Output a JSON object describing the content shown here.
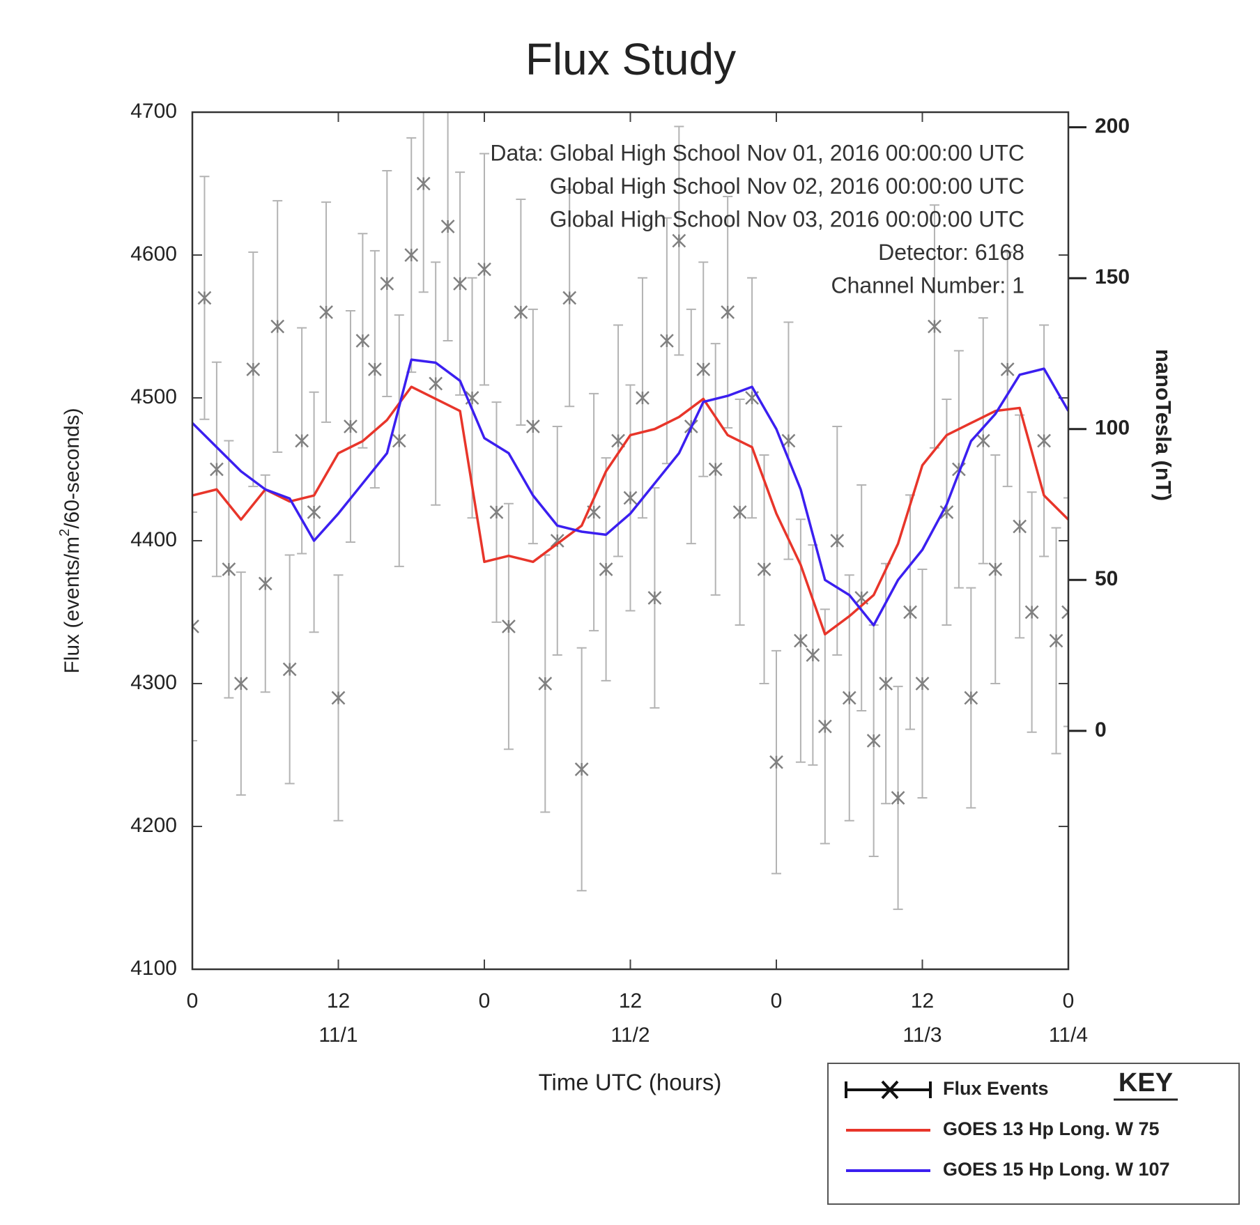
{
  "chart_data": {
    "type": "line",
    "title": "Flux Study",
    "xlabel": "Time UTC (hours)",
    "ylabel": [
      "Flux (events/m",
      "2",
      "/60-seconds)"
    ],
    "y2label": "nanoTesla (nT)",
    "annotations": [
      "Data: Global High School Nov 01, 2016 00:00:00 UTC",
      "Global High School Nov 02, 2016 00:00:00 UTC",
      "Global High School Nov 03, 2016 00:00:00 UTC",
      "Detector: 6168",
      "Channel Number: 1"
    ],
    "legend_title": "KEY",
    "xlim": [
      0,
      72
    ],
    "xticks": [
      0,
      12,
      {
        "value": 24,
        "label": "0"
      },
      {
        "value": 36,
        "label": "12"
      },
      {
        "value": 48,
        "label": "0"
      },
      {
        "value": 60,
        "label": "12"
      },
      {
        "value": 72,
        "label": "0"
      }
    ],
    "xtick_dates": [
      {
        "value": 12,
        "label": "11/1"
      },
      {
        "value": 36,
        "label": "11/2"
      },
      {
        "value": 60,
        "label": "11/3"
      },
      {
        "value": 72,
        "label": "11/4"
      }
    ],
    "ylim": [
      4100,
      4700
    ],
    "yticks": [
      4100,
      4200,
      4300,
      4400,
      4500,
      4600,
      4700
    ],
    "y2lim": [
      -79,
      205
    ],
    "y2ticks": [
      0,
      50,
      100,
      150,
      200
    ],
    "series": [
      {
        "name": "Flux Events",
        "color": "#808080",
        "x": [
          0,
          1,
          2,
          3,
          4,
          5,
          6,
          7,
          8,
          9,
          10,
          11,
          12,
          13,
          14,
          15,
          16,
          17,
          18,
          19,
          20,
          21,
          22,
          23,
          24,
          25,
          26,
          27,
          28,
          29,
          30,
          31,
          32,
          33,
          34,
          35,
          36,
          37,
          38,
          39,
          40,
          41,
          42,
          43,
          44,
          45,
          46,
          47,
          48,
          49,
          50,
          51,
          52,
          53,
          54,
          55,
          56,
          57,
          58,
          59,
          60,
          61,
          62,
          63,
          64,
          65,
          66,
          67,
          68,
          69,
          70,
          71,
          72
        ],
        "values": [
          4340,
          4570,
          4450,
          4380,
          4300,
          4520,
          4370,
          4550,
          4310,
          4470,
          4420,
          4560,
          4290,
          4480,
          4540,
          4520,
          4580,
          4470,
          4600,
          4650,
          4510,
          4620,
          4580,
          4500,
          4590,
          4420,
          4340,
          4560,
          4480,
          4300,
          4400,
          4570,
          4240,
          4420,
          4380,
          4470,
          4430,
          4500,
          4360,
          4540,
          4610,
          4480,
          4520,
          4450,
          4560,
          4420,
          4500,
          4380,
          4245,
          4470,
          4330,
          4320,
          4270,
          4400,
          4290,
          4360,
          4260,
          4300,
          4220,
          4350,
          4300,
          4550,
          4420,
          4450,
          4290,
          4470,
          4380,
          4520,
          4410,
          4350,
          4470,
          4330,
          4350
        ],
        "errors": [
          80,
          85,
          75,
          90,
          78,
          82,
          76,
          88,
          80,
          79,
          84,
          77,
          86,
          81,
          75,
          83,
          79,
          88,
          82,
          76,
          85,
          80,
          78,
          84,
          81,
          77,
          86,
          79,
          82,
          90,
          80,
          76,
          85,
          83,
          78,
          81,
          79,
          84,
          77,
          86,
          80,
          82,
          75,
          88,
          81,
          79,
          84,
          80,
          78,
          83,
          85,
          77,
          82,
          80,
          86,
          79,
          81,
          84,
          78,
          82,
          80,
          85,
          79,
          83,
          77,
          86,
          80,
          82,
          78,
          84,
          81,
          79,
          80
        ]
      },
      {
        "name": "GOES 13 Hp Long. W 75",
        "color": "#e8352a",
        "axis": "y2",
        "x": [
          0,
          2,
          4,
          6,
          8,
          10,
          12,
          14,
          16,
          18,
          20,
          22,
          24,
          26,
          28,
          30,
          32,
          34,
          36,
          38,
          40,
          42,
          44,
          46,
          48,
          50,
          52,
          54,
          56,
          58,
          60,
          62,
          64,
          66,
          68,
          70,
          72
        ],
        "values": [
          78,
          80,
          70,
          80,
          76,
          78,
          92,
          96,
          103,
          114,
          110,
          106,
          56,
          58,
          56,
          62,
          68,
          86,
          98,
          100,
          104,
          110,
          98,
          94,
          72,
          55,
          32,
          38,
          45,
          62,
          88,
          98,
          102,
          106,
          107,
          78,
          70
        ]
      },
      {
        "name": "GOES 15 Hp Long. W 107",
        "color": "#3b1ff0",
        "axis": "y2",
        "x": [
          0,
          2,
          4,
          6,
          8,
          10,
          12,
          14,
          16,
          18,
          20,
          22,
          24,
          26,
          28,
          30,
          32,
          34,
          36,
          38,
          40,
          42,
          44,
          46,
          48,
          50,
          52,
          54,
          56,
          58,
          60,
          62,
          64,
          66,
          68,
          70,
          72
        ],
        "values": [
          102,
          94,
          86,
          80,
          77,
          63,
          72,
          82,
          92,
          123,
          122,
          116,
          97,
          92,
          78,
          68,
          66,
          65,
          72,
          82,
          92,
          109,
          111,
          114,
          100,
          80,
          50,
          45,
          35,
          50,
          60,
          75,
          96,
          105,
          118,
          120,
          106
        ]
      }
    ]
  }
}
